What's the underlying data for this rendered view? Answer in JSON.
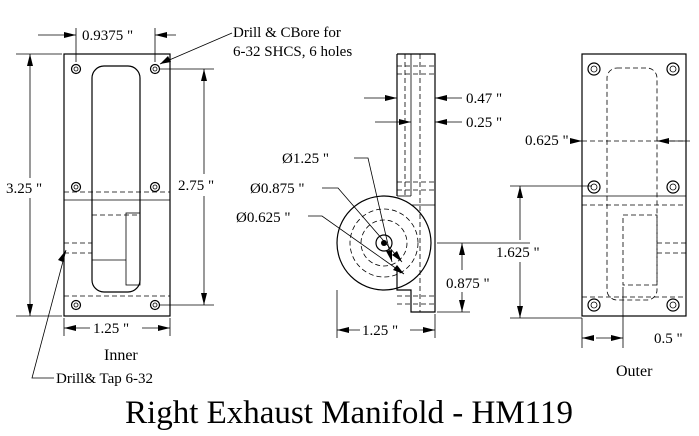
{
  "title": "Right Exhaust Manifold - HM119",
  "views": {
    "inner": "Inner",
    "outer": "Outer"
  },
  "notes": {
    "drill_cbore_line1": "Drill & CBore for",
    "drill_cbore_line2": "6-32 SHCS, 6 holes",
    "drill_tap": "Drill& Tap 6-32"
  },
  "dimensions": {
    "hole_spacing": "0.9375 \"",
    "overall_height": "3.25 \"",
    "hole_height": "2.75 \"",
    "inner_width": "1.25 \"",
    "side_depth_1": "0.47 \"",
    "side_depth_2": "0.25 \"",
    "dia_1": "Ø1.25 \"",
    "dia_2": "Ø0.875 \"",
    "dia_3": "Ø0.625 \"",
    "side_width": "1.25 \"",
    "center_height_1": "1.625 \"",
    "center_height_2": "0.875 \"",
    "outer_offset": "0.625 \"",
    "outer_width_offset": "0.5 \""
  }
}
